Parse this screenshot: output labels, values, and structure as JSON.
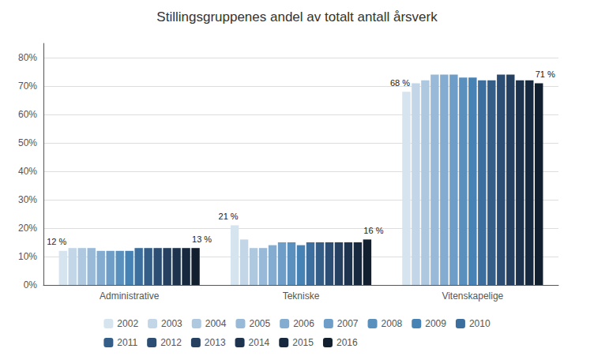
{
  "chart_data": {
    "type": "bar",
    "title": "Stillingsgruppenes andel av totalt antall årsverk",
    "categories": [
      "Administrative",
      "Tekniske",
      "Vitenskapelige"
    ],
    "series": [
      {
        "name": "2002",
        "color": "#d6e4f0",
        "values": [
          12,
          21,
          68
        ],
        "value_labels": [
          "12 %",
          "21 %",
          "68 %"
        ]
      },
      {
        "name": "2003",
        "color": "#c2d6e8",
        "values": [
          13,
          16,
          71
        ]
      },
      {
        "name": "2004",
        "color": "#aec8e0",
        "values": [
          13,
          13,
          72
        ]
      },
      {
        "name": "2005",
        "color": "#98bad8",
        "values": [
          13,
          13,
          74
        ]
      },
      {
        "name": "2006",
        "color": "#83acd0",
        "values": [
          12,
          14,
          74
        ]
      },
      {
        "name": "2007",
        "color": "#6e9ec8",
        "values": [
          12,
          15,
          74
        ]
      },
      {
        "name": "2008",
        "color": "#5a90be",
        "values": [
          12,
          15,
          73
        ]
      },
      {
        "name": "2009",
        "color": "#4782b4",
        "values": [
          12,
          14,
          73
        ]
      },
      {
        "name": "2010",
        "color": "#3d6f9e",
        "values": [
          13,
          15,
          72
        ]
      },
      {
        "name": "2011",
        "color": "#345e88",
        "values": [
          13,
          15,
          72
        ]
      },
      {
        "name": "2012",
        "color": "#2c4e74",
        "values": [
          13,
          15,
          74
        ]
      },
      {
        "name": "2013",
        "color": "#254060",
        "values": [
          13,
          15,
          74
        ]
      },
      {
        "name": "2014",
        "color": "#1e344e",
        "values": [
          13,
          15,
          72
        ]
      },
      {
        "name": "2015",
        "color": "#17293e",
        "values": [
          13,
          15,
          72
        ]
      },
      {
        "name": "2016",
        "color": "#111f2e",
        "values": [
          13,
          16,
          71
        ],
        "value_labels": [
          "13 %",
          "16 %",
          "71 %"
        ]
      }
    ],
    "ylim": [
      0,
      85
    ],
    "yticks": [
      {
        "value": 0,
        "label": "0%"
      },
      {
        "value": 10,
        "label": "10%"
      },
      {
        "value": 20,
        "label": "20%"
      },
      {
        "value": 30,
        "label": "30%"
      },
      {
        "value": 40,
        "label": "40%"
      },
      {
        "value": 50,
        "label": "50%"
      },
      {
        "value": 60,
        "label": "60%"
      },
      {
        "value": 70,
        "label": "70%"
      },
      {
        "value": 80,
        "label": "80%"
      }
    ],
    "grid": true,
    "legend": "bottom"
  }
}
